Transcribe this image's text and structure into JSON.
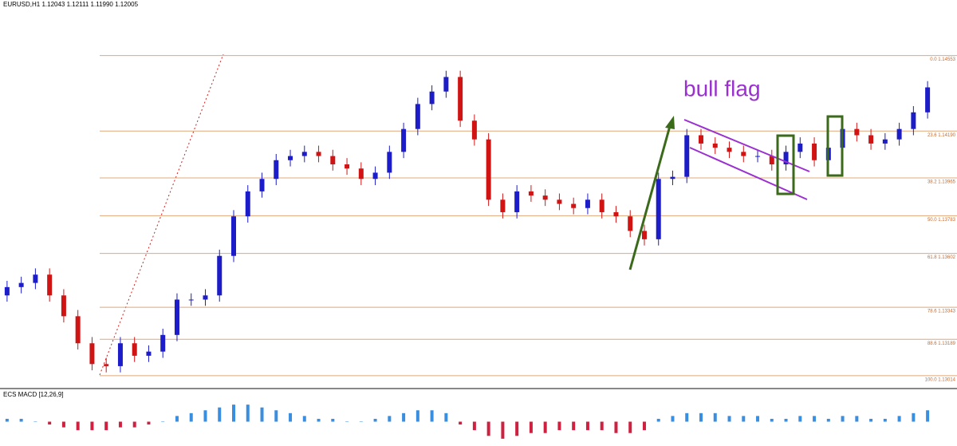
{
  "chart_data": {
    "type": "candlestick",
    "title": "EURUSD,H1  1.12043 1.12111 1.11990 1.12005",
    "annotation": "bull flag",
    "up_color": "#1c1cc8",
    "down_color": "#d01414",
    "open": [
      1.134,
      1.1344,
      1.1346,
      1.135,
      1.134,
      1.133,
      1.1317,
      1.1307,
      1.1306,
      1.1317,
      1.1311,
      1.1313,
      1.1321,
      1.1338,
      1.1338,
      1.134,
      1.1359,
      1.1378,
      1.139,
      1.1396,
      1.1405,
      1.1407,
      1.1409,
      1.1407,
      1.1403,
      1.1401,
      1.1396,
      1.1399,
      1.1409,
      1.142,
      1.1432,
      1.1438,
      1.1445,
      1.1424,
      1.1415,
      1.1386,
      1.138,
      1.139,
      1.1388,
      1.1386,
      1.1384,
      1.1382,
      1.1386,
      1.138,
      1.1378,
      1.1371,
      1.1367,
      1.1396,
      1.1397,
      1.1417,
      1.1413,
      1.1411,
      1.1409,
      1.1407,
      1.1407,
      1.1403,
      1.1409,
      1.1413,
      1.1405,
      1.1411,
      1.142,
      1.1417,
      1.1413,
      1.1415,
      1.142,
      1.1428
    ],
    "high": [
      1.1347,
      1.1349,
      1.1353,
      1.1353,
      1.1343,
      1.1333,
      1.132,
      1.131,
      1.132,
      1.132,
      1.1316,
      1.1324,
      1.1341,
      1.1341,
      1.1343,
      1.1362,
      1.1381,
      1.1393,
      1.1399,
      1.1408,
      1.141,
      1.1412,
      1.1412,
      1.141,
      1.1406,
      1.1404,
      1.1402,
      1.1412,
      1.1423,
      1.1435,
      1.1441,
      1.1448,
      1.1448,
      1.1427,
      1.1418,
      1.1389,
      1.1393,
      1.1393,
      1.1391,
      1.1389,
      1.1387,
      1.1389,
      1.1389,
      1.1383,
      1.1381,
      1.1374,
      1.1399,
      1.14,
      1.142,
      1.142,
      1.1416,
      1.1414,
      1.1412,
      1.141,
      1.141,
      1.1412,
      1.1416,
      1.1416,
      1.1414,
      1.1423,
      1.1423,
      1.142,
      1.1418,
      1.1423,
      1.1431,
      1.1443
    ],
    "low": [
      1.1337,
      1.1341,
      1.1343,
      1.1337,
      1.1327,
      1.1314,
      1.1304,
      1.1303,
      1.1303,
      1.1308,
      1.1308,
      1.131,
      1.1318,
      1.1335,
      1.1335,
      1.1337,
      1.1356,
      1.1375,
      1.1387,
      1.1393,
      1.1402,
      1.1404,
      1.1404,
      1.14,
      1.1398,
      1.1393,
      1.1393,
      1.1396,
      1.1406,
      1.1417,
      1.1429,
      1.1435,
      1.1421,
      1.1412,
      1.1383,
      1.1377,
      1.1377,
      1.1385,
      1.1383,
      1.1381,
      1.1379,
      1.1379,
      1.1377,
      1.1375,
      1.1368,
      1.1364,
      1.1364,
      1.1393,
      1.1394,
      1.141,
      1.1408,
      1.1406,
      1.1404,
      1.1404,
      1.14,
      1.14,
      1.1406,
      1.1402,
      1.1402,
      1.1408,
      1.1414,
      1.141,
      1.141,
      1.1412,
      1.1417,
      1.1425
    ],
    "close": [
      1.1344,
      1.1346,
      1.135,
      1.134,
      1.133,
      1.1317,
      1.1307,
      1.1306,
      1.1317,
      1.1311,
      1.1313,
      1.1321,
      1.1338,
      1.1338,
      1.134,
      1.1359,
      1.1378,
      1.139,
      1.1396,
      1.1405,
      1.1407,
      1.1409,
      1.1407,
      1.1403,
      1.1401,
      1.1396,
      1.1399,
      1.1409,
      1.142,
      1.1432,
      1.1438,
      1.1445,
      1.1424,
      1.1415,
      1.1386,
      1.138,
      1.139,
      1.1388,
      1.1386,
      1.1384,
      1.1382,
      1.1386,
      1.138,
      1.1378,
      1.1371,
      1.1367,
      1.1396,
      1.1397,
      1.1417,
      1.1413,
      1.1411,
      1.1409,
      1.1407,
      1.1407,
      1.1403,
      1.1409,
      1.1413,
      1.1405,
      1.1411,
      1.142,
      1.1417,
      1.1413,
      1.1415,
      1.142,
      1.1428,
      1.144
    ],
    "ylim": [
      1.1296,
      1.1482
    ],
    "levels": [
      {
        "value": 1.14553,
        "label": "0.0 1.14553"
      },
      {
        "value": 1.1419,
        "label": "23.6 1.14190"
      },
      {
        "value": 1.13965,
        "label": "38.2 1.13965"
      },
      {
        "value": 1.13783,
        "label": "50.0 1.13783"
      },
      {
        "value": 1.13602,
        "label": "61.8 1.13602"
      },
      {
        "value": 1.13343,
        "label": "78.6 1.13343"
      },
      {
        "value": 1.13189,
        "label": "88.6 1.13189"
      },
      {
        "value": 1.13014,
        "label": "100.0 1.13014"
      }
    ],
    "level_color": "#e0a878",
    "indicator": {
      "title": "ECS MACD [12,26,9]",
      "ylim": [
        -8,
        8
      ],
      "pos_color": "#3a8ee0",
      "neg_color": "#d02040",
      "values": [
        1,
        1,
        0,
        -1,
        -2,
        -3,
        -3,
        -3,
        -2,
        -2,
        -1,
        0,
        2,
        3,
        4,
        5,
        6,
        6,
        5,
        4,
        3,
        2,
        1,
        1,
        0,
        0,
        1,
        2,
        3,
        4,
        4,
        3,
        -1,
        -3,
        -5,
        -6,
        -5,
        -4,
        -4,
        -3,
        -3,
        -3,
        -3,
        -4,
        -4,
        -3,
        1,
        2,
        3,
        3,
        3,
        2,
        2,
        2,
        1,
        1,
        2,
        2,
        1,
        2,
        2,
        1,
        1,
        2,
        3,
        4
      ]
    }
  }
}
